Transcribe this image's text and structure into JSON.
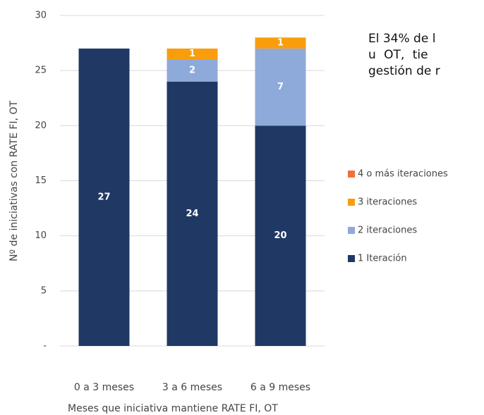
{
  "chart_data": {
    "type": "stacked_bar",
    "categories": [
      "0 a 3 meses",
      "3 a 6 meses",
      "6 a 9 meses"
    ],
    "series": [
      {
        "name": "1 Iteración",
        "color": "#203864",
        "values": [
          27,
          24,
          20
        ]
      },
      {
        "name": "2 iteraciones",
        "color": "#8eaadb",
        "values": [
          0,
          2,
          7
        ]
      },
      {
        "name": "3 iteraciones",
        "color": "#f99d0c",
        "values": [
          0,
          1,
          1
        ]
      },
      {
        "name": "4 o más iteraciones",
        "color": "#f0703a",
        "values": [
          0,
          0,
          0
        ]
      }
    ],
    "ylim": [
      0,
      30
    ],
    "yticks": [
      {
        "value": 0,
        "label": "-"
      },
      5,
      10,
      15,
      20,
      25,
      30
    ],
    "grid": true,
    "xlabel": "Meses que iniciativa mantiene RATE FI, OT",
    "ylabel": "Nº de iniciativas con RATE FI, OT",
    "annotation": [
      "El 34% de l",
      "u  OT,  tie",
      "gestión de r"
    ]
  }
}
